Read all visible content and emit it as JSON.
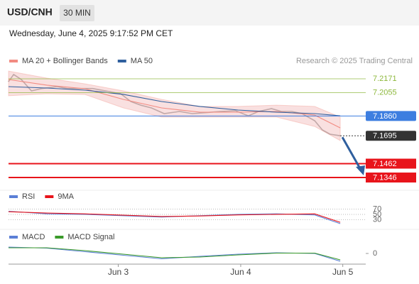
{
  "header": {
    "symbol": "USD/CNH",
    "interval": "30 MIN",
    "datetime": "Wednesday, June 4, 2025 9:17:52 PM CET"
  },
  "chart_data": [
    {
      "type": "line",
      "source": "Research © 2025 Trading Central",
      "xlim": [
        0,
        140
      ],
      "ylim": [
        7.1275,
        7.2266
      ],
      "series": [
        {
          "color": "#444444",
          "x": [
            0,
            2,
            5,
            9,
            13,
            19,
            23,
            27,
            33,
            38,
            44,
            48,
            52,
            56,
            61,
            67,
            72,
            78,
            83,
            89,
            94,
            98,
            103,
            107,
            111,
            115,
            120,
            123,
            126,
            130
          ],
          "values": [
            7.2147,
            7.2207,
            7.2165,
            7.207,
            7.209,
            7.2106,
            7.209,
            7.209,
            7.209,
            7.207,
            7.2046,
            7.198,
            7.195,
            7.1928,
            7.188,
            7.1898,
            7.188,
            7.189,
            7.1898,
            7.1904,
            7.1862,
            7.1898,
            7.1922,
            7.1898,
            7.1898,
            7.188,
            7.1821,
            7.1744,
            7.1708,
            7.1695
          ]
        },
        {
          "name": "MA 20 + Bollinger Bands",
          "color": "#f28b82",
          "band_color": "#f7d3d3",
          "x": [
            0,
            15,
            30,
            45,
            60,
            75,
            90,
            105,
            120,
            130
          ],
          "values": [
            7.2165,
            7.2118,
            7.2088,
            7.1999,
            7.1928,
            7.1892,
            7.1892,
            7.1898,
            7.1868,
            7.1761
          ],
          "upper": [
            7.2236,
            7.2177,
            7.2129,
            7.207,
            7.1999,
            7.194,
            7.194,
            7.1951,
            7.194,
            7.1851
          ],
          "lower": [
            7.2029,
            7.2046,
            7.204,
            7.1928,
            7.1851,
            7.1851,
            7.1851,
            7.1851,
            7.1773,
            7.1655
          ]
        },
        {
          "name": "MA 50",
          "color": "#2f5f9e",
          "x": [
            0,
            15,
            30,
            45,
            60,
            75,
            90,
            105,
            120,
            130
          ],
          "values": [
            7.2106,
            7.2094,
            7.2076,
            7.2041,
            7.1981,
            7.194,
            7.191,
            7.1892,
            7.188,
            7.1862
          ]
        }
      ],
      "levels": [
        {
          "value": 7.2171,
          "label": "7.2171",
          "color": "#8db83c",
          "style": "thin"
        },
        {
          "value": 7.2055,
          "label": "7.2055",
          "color": "#8db83c",
          "style": "thin"
        },
        {
          "value": 7.186,
          "label": "7.1860",
          "color": "#3d7ee0",
          "style": "box"
        },
        {
          "value": 7.1695,
          "label": "7.1695",
          "color": "#333333",
          "style": "dotted"
        },
        {
          "value": 7.1462,
          "label": "7.1462",
          "color": "#e8141b",
          "style": "thick"
        },
        {
          "value": 7.1346,
          "label": "7.1346",
          "color": "#e8141b",
          "style": "thick"
        }
      ]
    },
    {
      "type": "line",
      "xlim": [
        0,
        140
      ],
      "ylim": [
        7,
        90
      ],
      "yticks": [
        70,
        50,
        30
      ],
      "grid": true,
      "series": [
        {
          "name": "RSI",
          "color": "#5b7fd6",
          "x": [
            0,
            15,
            30,
            45,
            60,
            75,
            90,
            105,
            120,
            130
          ],
          "values": [
            62,
            52,
            50,
            45,
            40,
            45,
            50,
            52,
            48,
            15
          ]
        },
        {
          "name": "9MA",
          "color": "#e8141b",
          "x": [
            0,
            15,
            30,
            45,
            60,
            75,
            90,
            105,
            120,
            130
          ],
          "values": [
            60,
            55,
            52,
            47,
            42,
            44,
            48,
            50,
            52,
            20
          ]
        }
      ]
    },
    {
      "type": "line",
      "xlim": [
        0,
        140
      ],
      "ylim": [
        -0.003,
        0.003
      ],
      "yticks": [
        0
      ],
      "xticks": [
        {
          "value": 43,
          "label": "Jun 3"
        },
        {
          "value": 91,
          "label": "Jun 4"
        },
        {
          "value": 131,
          "label": "Jun 5"
        }
      ],
      "series": [
        {
          "name": "MACD",
          "color": "#5b7fd6",
          "x": [
            0,
            15,
            30,
            45,
            60,
            75,
            90,
            105,
            120,
            130
          ],
          "values": [
            0.0018,
            0.0015,
            0.0005,
            -0.0005,
            -0.0015,
            -0.0008,
            -0.0002,
            0.0002,
            0.0,
            -0.0022
          ]
        },
        {
          "name": "MACD Signal",
          "color": "#3a9a2a",
          "x": [
            0,
            15,
            30,
            45,
            60,
            75,
            90,
            105,
            120,
            130
          ],
          "values": [
            0.0016,
            0.0016,
            0.0008,
            -0.0002,
            -0.0012,
            -0.001,
            -0.0004,
            0.0001,
            0.0001,
            -0.0018
          ]
        }
      ]
    }
  ]
}
